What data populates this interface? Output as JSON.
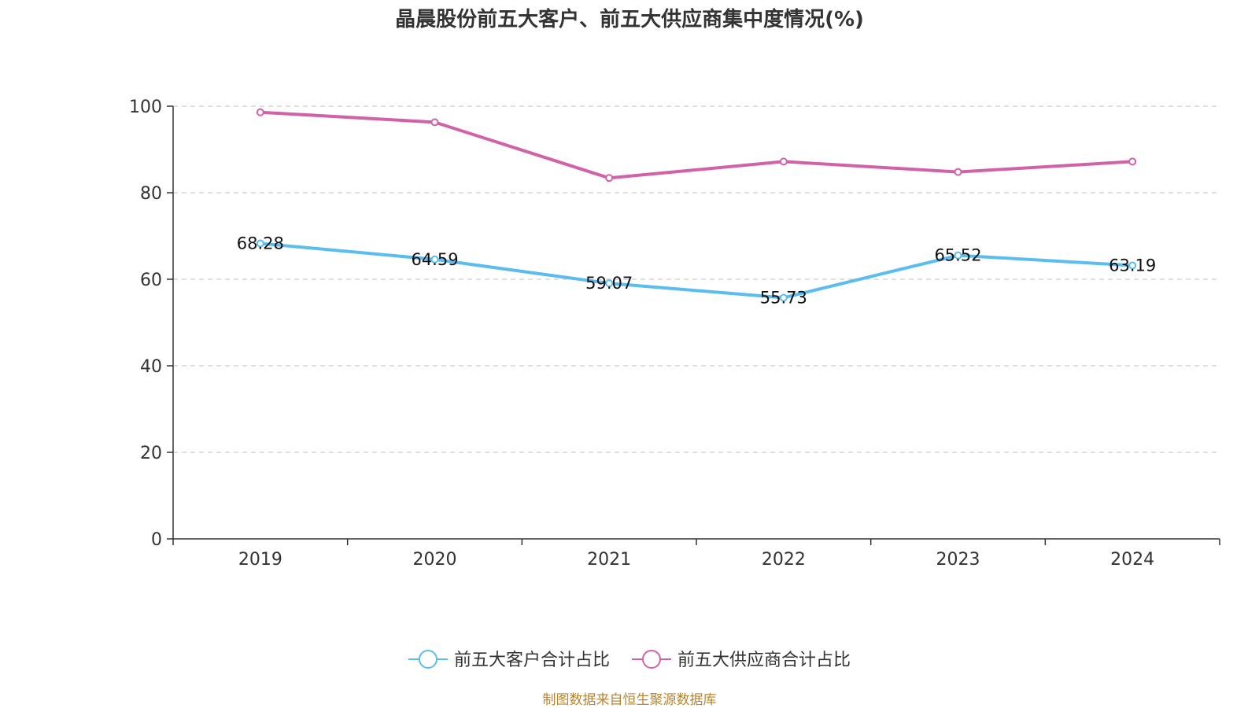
{
  "chart_data": {
    "type": "line",
    "title": "晶晨股份前五大客户、前五大供应商集中度情况(%)",
    "categories": [
      "2019",
      "2020",
      "2021",
      "2022",
      "2023",
      "2024"
    ],
    "ylim": [
      0,
      100
    ],
    "yticks": [
      0,
      20,
      40,
      60,
      80,
      100
    ],
    "grid": true,
    "legend_position": "bottom",
    "series": [
      {
        "name": "前五大客户合计占比",
        "color": "#5bbcf0",
        "values": [
          68.28,
          64.59,
          59.07,
          55.73,
          65.52,
          63.19
        ],
        "labels": [
          "68.28",
          "64.59",
          "59.07",
          "55.73",
          "65.52",
          "63.19"
        ],
        "show_labels": true
      },
      {
        "name": "前五大供应商合计占比",
        "color": "#d162a8",
        "values": [
          98.6,
          96.3,
          83.4,
          87.2,
          84.8,
          87.2
        ],
        "show_labels": false
      }
    ],
    "source": "制图数据来自恒生聚源数据库"
  }
}
